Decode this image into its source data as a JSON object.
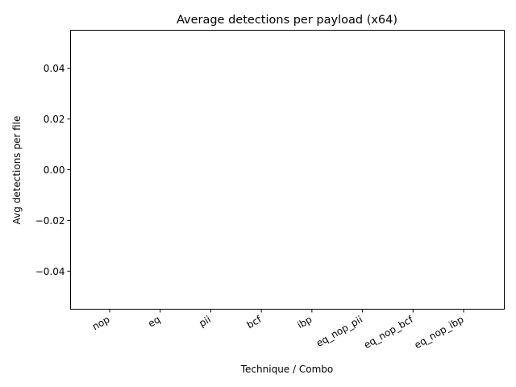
{
  "chart_data": {
    "type": "bar",
    "title": "Average detections per payload (x64)",
    "xlabel": "Technique / Combo",
    "ylabel": "Avg detections per file",
    "categories": [
      "nop",
      "eq",
      "pii",
      "bcf",
      "ibp",
      "eq_nop_pii",
      "eq_nop_bcf",
      "eq_nop_ibp"
    ],
    "values": [
      0,
      0,
      0,
      0,
      0,
      0,
      0,
      0
    ],
    "ylim": [
      -0.055,
      0.055
    ],
    "yticks": [
      -0.04,
      -0.02,
      0.0,
      0.02,
      0.04
    ],
    "ytick_labels": [
      "−0.04",
      "−0.02",
      "0.00",
      "0.02",
      "0.04"
    ],
    "grid": false,
    "legend": "none",
    "colors": {
      "bar": "#1f77b4",
      "axis": "#000000",
      "background": "#ffffff"
    }
  }
}
